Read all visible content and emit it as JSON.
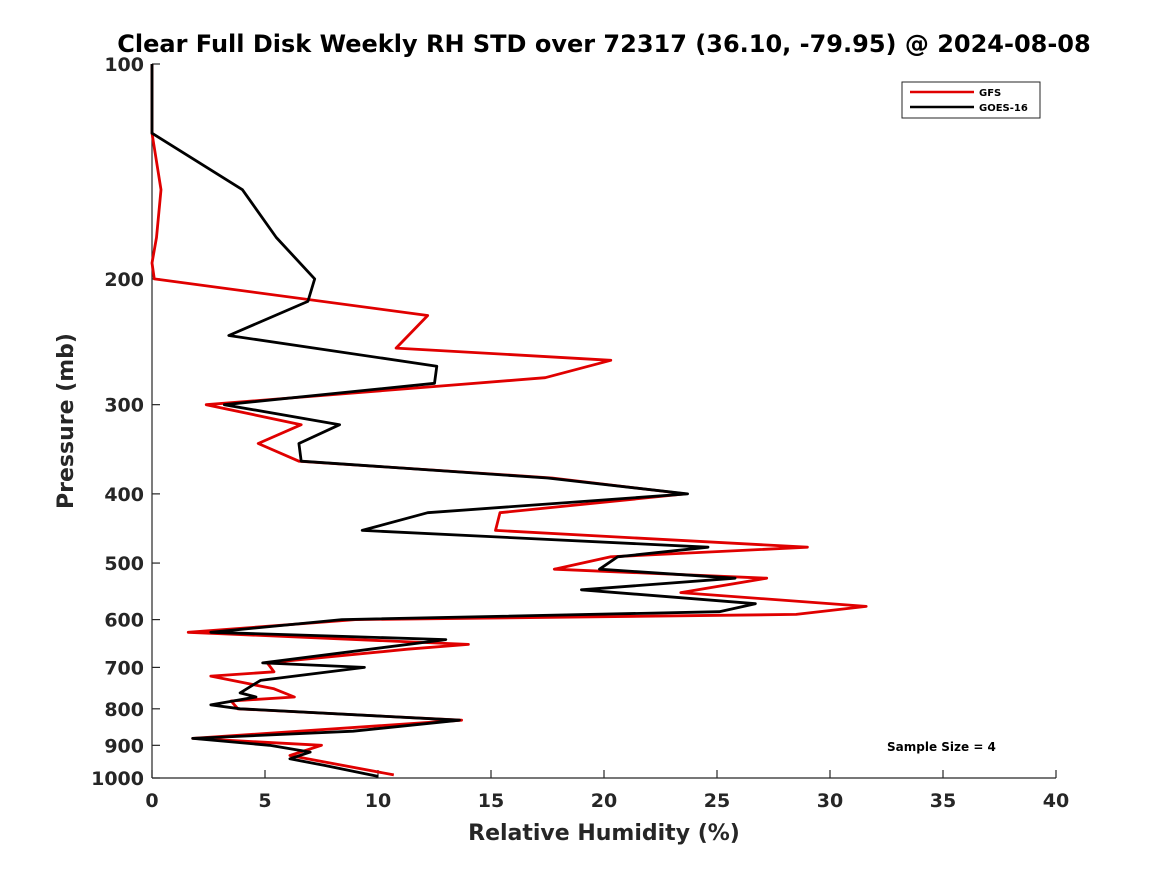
{
  "chart_data": {
    "type": "line",
    "title": "Clear Full Disk Weekly RH STD over 72317 (36.10, -79.95) @ 2024-08-08",
    "xlabel": "Relative Humidity (%)",
    "ylabel": "Pressure (mb)",
    "xlim": [
      0,
      40
    ],
    "ylim": [
      1000,
      100
    ],
    "yscale": "log",
    "x_ticks": [
      0,
      5,
      10,
      15,
      20,
      25,
      30,
      35,
      40
    ],
    "y_ticks": [
      100,
      200,
      300,
      400,
      500,
      600,
      700,
      800,
      900,
      1000
    ],
    "legend_position": "top-right",
    "annotation": "Sample Size = 4",
    "series": [
      {
        "name": "GFS",
        "color": "#e00000",
        "points": [
          [
            0.0,
            100
          ],
          [
            0.0,
            125
          ],
          [
            0.4,
            150
          ],
          [
            0.2,
            175
          ],
          [
            0.0,
            190
          ],
          [
            0.1,
            200
          ],
          [
            12.2,
            225
          ],
          [
            10.8,
            250
          ],
          [
            20.3,
            260
          ],
          [
            17.4,
            275
          ],
          [
            2.4,
            300
          ],
          [
            6.6,
            320
          ],
          [
            4.7,
            340
          ],
          [
            6.5,
            360
          ],
          [
            17.7,
            380
          ],
          [
            23.6,
            400
          ],
          [
            15.4,
            425
          ],
          [
            15.2,
            450
          ],
          [
            29.0,
            475
          ],
          [
            20.3,
            490
          ],
          [
            17.8,
            510
          ],
          [
            27.2,
            525
          ],
          [
            23.4,
            550
          ],
          [
            31.6,
            575
          ],
          [
            28.5,
            590
          ],
          [
            9.0,
            600
          ],
          [
            1.6,
            625
          ],
          [
            14.0,
            650
          ],
          [
            11.3,
            660
          ],
          [
            5.1,
            690
          ],
          [
            5.4,
            710
          ],
          [
            2.6,
            720
          ],
          [
            5.4,
            750
          ],
          [
            6.3,
            770
          ],
          [
            3.5,
            780
          ],
          [
            3.8,
            800
          ],
          [
            13.7,
            830
          ],
          [
            1.8,
            880
          ],
          [
            7.5,
            900
          ],
          [
            6.1,
            930
          ],
          [
            10.7,
            990
          ]
        ]
      },
      {
        "name": "GOES-16",
        "color": "#000000",
        "points": [
          [
            0.0,
            100
          ],
          [
            0.0,
            125
          ],
          [
            4.0,
            150
          ],
          [
            5.5,
            175
          ],
          [
            7.2,
            200
          ],
          [
            6.9,
            215
          ],
          [
            3.4,
            240
          ],
          [
            12.6,
            265
          ],
          [
            12.5,
            280
          ],
          [
            3.2,
            300
          ],
          [
            8.3,
            320
          ],
          [
            6.5,
            340
          ],
          [
            6.6,
            360
          ],
          [
            17.5,
            380
          ],
          [
            23.7,
            400
          ],
          [
            12.2,
            425
          ],
          [
            9.3,
            450
          ],
          [
            24.6,
            475
          ],
          [
            20.6,
            490
          ],
          [
            19.8,
            510
          ],
          [
            25.8,
            525
          ],
          [
            19.0,
            545
          ],
          [
            26.7,
            570
          ],
          [
            25.1,
            585
          ],
          [
            8.4,
            600
          ],
          [
            2.6,
            625
          ],
          [
            13.0,
            640
          ],
          [
            4.9,
            690
          ],
          [
            9.4,
            700
          ],
          [
            4.8,
            730
          ],
          [
            3.9,
            760
          ],
          [
            4.6,
            770
          ],
          [
            2.6,
            790
          ],
          [
            3.9,
            800
          ],
          [
            13.6,
            830
          ],
          [
            8.9,
            860
          ],
          [
            1.8,
            880
          ],
          [
            5.2,
            900
          ],
          [
            7.0,
            920
          ],
          [
            6.1,
            940
          ],
          [
            7.6,
            960
          ],
          [
            10.0,
            995
          ]
        ]
      }
    ]
  }
}
